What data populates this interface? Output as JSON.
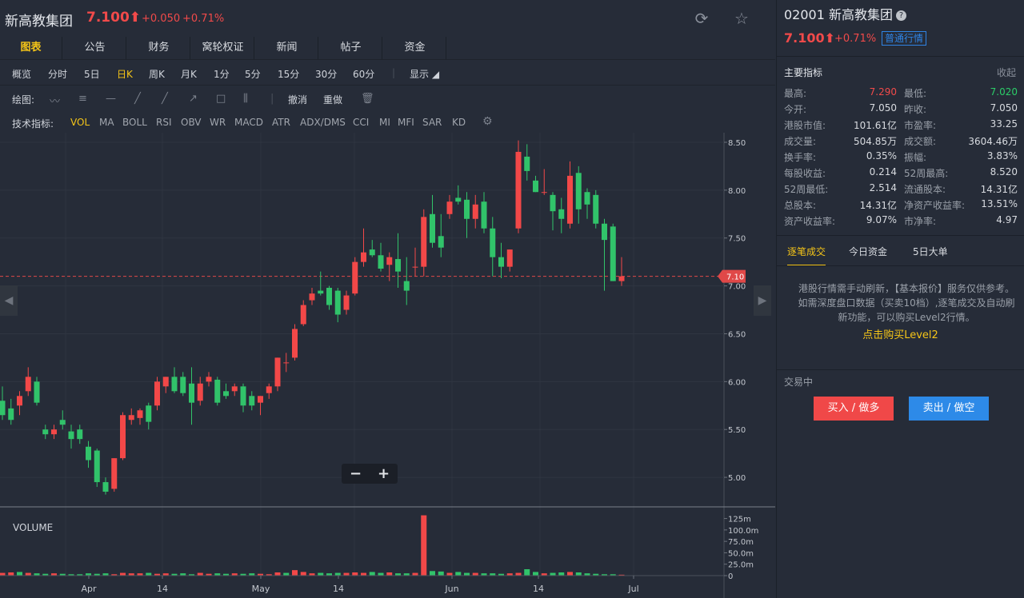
{
  "header": {
    "title": "新高教集团",
    "price": "7.100⬆",
    "change": "+0.050",
    "change_pct": "+0.71%",
    "refresh_icon": "refresh-icon",
    "star_icon": "star-icon"
  },
  "tabs": [
    "图表",
    "公告",
    "财务",
    "窝轮权证",
    "新闻",
    "帖子",
    "资金"
  ],
  "active_tab": 0,
  "periods": [
    "概览",
    "分时",
    "5日",
    "日K",
    "周K",
    "月K",
    "1分",
    "5分",
    "15分",
    "30分",
    "60分"
  ],
  "active_period": 3,
  "display_label": "显示",
  "draw": {
    "label": "绘图:",
    "undo": "撤消",
    "redo": "重做"
  },
  "indicators": {
    "label": "技术指标:",
    "items": [
      "VOL",
      "MA",
      "BOLL",
      "RSI",
      "OBV",
      "WR",
      "MACD",
      "ATR",
      "ADX/DMS",
      "CCI",
      "MI",
      "MFI",
      "SAR",
      "KD"
    ],
    "active": 0
  },
  "zoom": {
    "minus": "−",
    "plus": "+"
  },
  "chart_data": {
    "type": "candlestick",
    "current_price": 7.1,
    "current_price_label": "7.10",
    "price_axis": [
      5.0,
      5.5,
      6.0,
      6.5,
      7.0,
      7.5,
      8.0,
      8.5
    ],
    "price_labels": [
      "8.50",
      "8.00",
      "7.50",
      "7.00",
      "6.50",
      "6.00",
      "5.50",
      "5.00"
    ],
    "ylim": [
      4.7,
      8.6
    ],
    "volume_label": "VOLUME",
    "volume_axis_labels": [
      "125m",
      "100.0m",
      "75.0m",
      "50.0m",
      "25.0m",
      "0"
    ],
    "volume_ticks": [
      125,
      100,
      75,
      50,
      25,
      0
    ],
    "x_labels": [
      "Apr",
      "14",
      "May",
      "14",
      "Jun",
      "14",
      "Jul"
    ],
    "candles": [
      {
        "o": 5.8,
        "h": 5.95,
        "l": 5.6,
        "c": 5.65
      },
      {
        "o": 5.72,
        "h": 5.82,
        "l": 5.55,
        "c": 5.6
      },
      {
        "o": 5.75,
        "h": 5.9,
        "l": 5.65,
        "c": 5.85
      },
      {
        "o": 5.9,
        "h": 6.15,
        "l": 5.85,
        "c": 6.05
      },
      {
        "o": 6.0,
        "h": 6.05,
        "l": 5.75,
        "c": 5.78
      },
      {
        "o": 5.5,
        "h": 5.55,
        "l": 5.4,
        "c": 5.45
      },
      {
        "o": 5.45,
        "h": 5.55,
        "l": 5.4,
        "c": 5.5
      },
      {
        "o": 5.6,
        "h": 5.7,
        "l": 5.5,
        "c": 5.55
      },
      {
        "o": 5.48,
        "h": 5.55,
        "l": 5.3,
        "c": 5.4
      },
      {
        "o": 5.5,
        "h": 5.55,
        "l": 5.35,
        "c": 5.4
      },
      {
        "o": 5.32,
        "h": 5.38,
        "l": 5.1,
        "c": 5.18
      },
      {
        "o": 5.28,
        "h": 5.3,
        "l": 4.9,
        "c": 4.95
      },
      {
        "o": 4.95,
        "h": 5.0,
        "l": 4.82,
        "c": 4.85
      },
      {
        "o": 4.88,
        "h": 5.2,
        "l": 4.85,
        "c": 5.2
      },
      {
        "o": 5.2,
        "h": 5.68,
        "l": 5.18,
        "c": 5.65
      },
      {
        "o": 5.6,
        "h": 5.72,
        "l": 5.55,
        "c": 5.65
      },
      {
        "o": 5.62,
        "h": 5.72,
        "l": 5.55,
        "c": 5.7
      },
      {
        "o": 5.75,
        "h": 5.78,
        "l": 5.5,
        "c": 5.58
      },
      {
        "o": 5.75,
        "h": 6.05,
        "l": 5.7,
        "c": 6.0
      },
      {
        "o": 5.95,
        "h": 6.05,
        "l": 5.88,
        "c": 6.05
      },
      {
        "o": 6.05,
        "h": 6.15,
        "l": 5.88,
        "c": 5.9
      },
      {
        "o": 6.05,
        "h": 6.1,
        "l": 5.85,
        "c": 5.88
      },
      {
        "o": 5.98,
        "h": 6.15,
        "l": 5.55,
        "c": 5.78
      },
      {
        "o": 5.8,
        "h": 6.05,
        "l": 5.75,
        "c": 5.98
      },
      {
        "o": 6.0,
        "h": 6.1,
        "l": 5.95,
        "c": 6.05
      },
      {
        "o": 6.02,
        "h": 6.05,
        "l": 5.75,
        "c": 5.78
      },
      {
        "o": 5.9,
        "h": 5.98,
        "l": 5.82,
        "c": 5.85
      },
      {
        "o": 5.9,
        "h": 5.98,
        "l": 5.85,
        "c": 5.95
      },
      {
        "o": 5.95,
        "h": 5.98,
        "l": 5.68,
        "c": 5.75
      },
      {
        "o": 5.85,
        "h": 5.9,
        "l": 5.7,
        "c": 5.75
      },
      {
        "o": 5.78,
        "h": 5.85,
        "l": 5.65,
        "c": 5.85
      },
      {
        "o": 5.88,
        "h": 5.98,
        "l": 5.82,
        "c": 5.95
      },
      {
        "o": 5.95,
        "h": 6.25,
        "l": 5.9,
        "c": 6.25
      },
      {
        "o": 6.2,
        "h": 6.3,
        "l": 6.1,
        "c": 6.2
      },
      {
        "o": 6.25,
        "h": 6.6,
        "l": 6.22,
        "c": 6.55
      },
      {
        "o": 6.6,
        "h": 6.85,
        "l": 6.58,
        "c": 6.8
      },
      {
        "o": 6.85,
        "h": 6.98,
        "l": 6.8,
        "c": 6.92
      },
      {
        "o": 6.95,
        "h": 7.15,
        "l": 6.9,
        "c": 6.92
      },
      {
        "o": 6.98,
        "h": 7.0,
        "l": 6.75,
        "c": 6.8
      },
      {
        "o": 6.95,
        "h": 6.98,
        "l": 6.62,
        "c": 6.7
      },
      {
        "o": 6.75,
        "h": 6.95,
        "l": 6.7,
        "c": 6.9
      },
      {
        "o": 6.92,
        "h": 7.3,
        "l": 6.9,
        "c": 7.25
      },
      {
        "o": 7.25,
        "h": 7.6,
        "l": 7.2,
        "c": 7.35
      },
      {
        "o": 7.38,
        "h": 7.48,
        "l": 7.3,
        "c": 7.32
      },
      {
        "o": 7.32,
        "h": 7.45,
        "l": 7.15,
        "c": 7.18
      },
      {
        "o": 7.22,
        "h": 7.35,
        "l": 7.05,
        "c": 7.3
      },
      {
        "o": 7.28,
        "h": 7.55,
        "l": 6.98,
        "c": 7.15
      },
      {
        "o": 7.05,
        "h": 7.3,
        "l": 6.8,
        "c": 6.95
      },
      {
        "o": 7.2,
        "h": 7.4,
        "l": 7.1,
        "c": 7.2
      },
      {
        "o": 7.2,
        "h": 7.8,
        "l": 7.1,
        "c": 7.72
      },
      {
        "o": 7.75,
        "h": 7.95,
        "l": 7.4,
        "c": 7.45
      },
      {
        "o": 7.52,
        "h": 7.75,
        "l": 7.3,
        "c": 7.4
      },
      {
        "o": 7.75,
        "h": 7.95,
        "l": 7.7,
        "c": 7.88
      },
      {
        "o": 7.92,
        "h": 8.05,
        "l": 7.85,
        "c": 7.88
      },
      {
        "o": 7.9,
        "h": 7.98,
        "l": 7.5,
        "c": 7.7
      },
      {
        "o": 7.7,
        "h": 7.95,
        "l": 7.6,
        "c": 7.85
      },
      {
        "o": 7.88,
        "h": 7.98,
        "l": 7.55,
        "c": 7.6
      },
      {
        "o": 7.6,
        "h": 7.72,
        "l": 7.1,
        "c": 7.3
      },
      {
        "o": 7.3,
        "h": 7.45,
        "l": 7.08,
        "c": 7.2
      },
      {
        "o": 7.2,
        "h": 7.38,
        "l": 7.15,
        "c": 7.38
      },
      {
        "o": 7.6,
        "h": 8.52,
        "l": 7.55,
        "c": 8.4
      },
      {
        "o": 8.35,
        "h": 8.48,
        "l": 8.1,
        "c": 8.2
      },
      {
        "o": 8.1,
        "h": 8.15,
        "l": 7.98,
        "c": 7.98
      },
      {
        "o": 7.98,
        "h": 8.22,
        "l": 7.95,
        "c": 7.98
      },
      {
        "o": 7.95,
        "h": 7.98,
        "l": 7.58,
        "c": 7.78
      },
      {
        "o": 7.8,
        "h": 7.92,
        "l": 7.55,
        "c": 7.7
      },
      {
        "o": 7.65,
        "h": 8.3,
        "l": 7.6,
        "c": 8.15
      },
      {
        "o": 8.18,
        "h": 8.25,
        "l": 7.65,
        "c": 7.8
      },
      {
        "o": 7.98,
        "h": 8.02,
        "l": 7.7,
        "c": 7.85
      },
      {
        "o": 7.95,
        "h": 8.0,
        "l": 7.6,
        "c": 7.65
      },
      {
        "o": 7.65,
        "h": 7.7,
        "l": 6.95,
        "c": 7.48
      },
      {
        "o": 7.62,
        "h": 7.65,
        "l": 7.05,
        "c": 7.05
      },
      {
        "o": 7.05,
        "h": 7.3,
        "l": 7.0,
        "c": 7.1
      }
    ],
    "volumes": [
      6,
      7,
      8,
      6,
      5,
      4,
      5,
      4,
      3,
      3,
      5,
      4,
      5,
      3,
      6,
      5,
      5,
      6,
      4,
      5,
      4,
      5,
      3,
      6,
      4,
      5,
      4,
      5,
      4,
      5,
      4,
      3,
      7,
      6,
      12,
      8,
      5,
      6,
      5,
      6,
      6,
      7,
      6,
      8,
      6,
      7,
      5,
      5,
      6,
      132,
      10,
      9,
      6,
      8,
      6,
      6,
      5,
      5,
      4,
      5,
      6,
      14,
      8,
      5,
      6,
      7,
      8,
      7,
      5,
      4,
      3,
      3,
      2
    ],
    "volume_up": [
      true,
      true,
      false,
      true,
      false,
      false,
      true,
      false,
      false,
      false,
      false,
      false,
      false,
      true,
      true,
      true,
      true,
      false,
      true,
      true,
      false,
      false,
      false,
      true,
      true,
      false,
      false,
      true,
      false,
      false,
      true,
      true,
      true,
      false,
      true,
      true,
      true,
      false,
      false,
      false,
      true,
      true,
      true,
      false,
      false,
      true,
      false,
      false,
      true,
      true,
      false,
      false,
      true,
      false,
      false,
      true,
      false,
      false,
      false,
      true,
      true,
      false,
      false,
      true,
      false,
      false,
      true,
      false,
      false,
      false,
      false,
      false,
      true
    ]
  },
  "right": {
    "code_title": "02001 新高教集团",
    "help_icon": "?",
    "price": "7.100⬆",
    "change_pct": "+0.71%",
    "badge": "普通行情",
    "section_title": "主要指标",
    "collapse": "收起",
    "stats": [
      [
        "最高:",
        "7.290",
        "最低:",
        "7.020"
      ],
      [
        "今开:",
        "7.050",
        "昨收:",
        "7.050"
      ],
      [
        "港股市值:",
        "101.61亿",
        "市盈率:",
        "33.25"
      ],
      [
        "成交量:",
        "504.85万",
        "成交额:",
        "3604.46万"
      ],
      [
        "换手率:",
        "0.35%",
        "振幅:",
        "3.83%"
      ],
      [
        "每股收益:",
        "0.214",
        "52周最高:",
        "8.520"
      ],
      [
        "52周最低:",
        "2.514",
        "流通股本:",
        "14.31亿"
      ],
      [
        "总股本:",
        "14.31亿",
        "净资产收益率:",
        "13.51%"
      ],
      [
        "资产收益率:",
        "9.07%",
        "市净率:",
        "4.97"
      ]
    ],
    "subtabs": [
      "逐笔成交",
      "今日资金",
      "5日大单"
    ],
    "notice": "港股行情需手动刷新，【基本报价】服务仅供参考。如需深度盘口数据（买卖10档）,逐笔成交及自动刷新功能，可以购买Level2行情。",
    "notice_link": "点击购买Level2",
    "status": "交易中",
    "buy": "买入 / 做多",
    "sell": "卖出 / 做空"
  }
}
